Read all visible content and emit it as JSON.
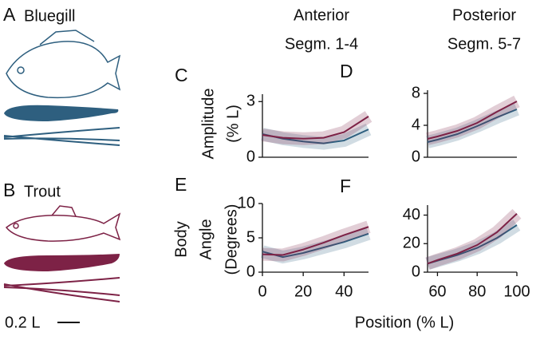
{
  "fish": [
    {
      "letter": "A",
      "name": "Bluegill",
      "color": "#2e5f7f"
    },
    {
      "letter": "B",
      "name": "Trout",
      "color": "#7d2246"
    }
  ],
  "scale_bar": "0.2 L",
  "columns": [
    [
      "Anterior",
      "Segm. 1-4"
    ],
    [
      "Posterior",
      "Segm. 5-7"
    ]
  ],
  "rows": [
    [
      "Amplitude",
      "(% L)"
    ],
    [
      "Body",
      "Angle",
      "(Degrees)"
    ]
  ],
  "x_label": "Position (% L)",
  "chart_data": [
    {
      "type": "line",
      "label": "C",
      "x": [
        0,
        10,
        20,
        30,
        40,
        52
      ],
      "xlim": [
        0,
        52
      ],
      "ylim": [
        0,
        3.4
      ],
      "yticks": [
        0,
        3
      ],
      "series": [
        {
          "color": "#2e5f7f",
          "values": [
            1.25,
            1.0,
            0.85,
            0.75,
            0.9,
            1.5
          ]
        },
        {
          "color": "#7d2246",
          "values": [
            1.2,
            1.05,
            1.0,
            1.05,
            1.35,
            2.2
          ]
        }
      ]
    },
    {
      "type": "line",
      "label": "D",
      "x": [
        55,
        60,
        70,
        80,
        90,
        100
      ],
      "xlim": [
        55,
        100
      ],
      "ylim": [
        0,
        8.4
      ],
      "yticks": [
        0,
        4,
        8
      ],
      "series": [
        {
          "color": "#2e5f7f",
          "values": [
            1.9,
            2.2,
            2.9,
            3.9,
            5.0,
            6.0
          ]
        },
        {
          "color": "#7d2246",
          "values": [
            2.3,
            2.6,
            3.3,
            4.3,
            5.7,
            7.0
          ]
        }
      ]
    },
    {
      "type": "line",
      "label": "E",
      "x": [
        0,
        10,
        20,
        30,
        40,
        52
      ],
      "xlim": [
        0,
        52
      ],
      "xticks": [
        0,
        20,
        40
      ],
      "ylim": [
        0,
        10
      ],
      "yticks": [
        0,
        5,
        10
      ],
      "series": [
        {
          "color": "#2e5f7f",
          "values": [
            3.0,
            2.2,
            2.8,
            3.6,
            4.4,
            5.6
          ]
        },
        {
          "color": "#7d2246",
          "values": [
            2.6,
            2.5,
            3.3,
            4.3,
            5.4,
            6.6
          ]
        }
      ]
    },
    {
      "type": "line",
      "label": "F",
      "x": [
        55,
        60,
        70,
        80,
        90,
        100
      ],
      "xlim": [
        55,
        100
      ],
      "xticks": [
        60,
        80,
        100
      ],
      "ylim": [
        0,
        47
      ],
      "yticks": [
        0,
        20,
        40
      ],
      "series": [
        {
          "color": "#2e5f7f",
          "values": [
            6,
            8,
            12,
            17,
            24,
            33
          ]
        },
        {
          "color": "#7d2246",
          "values": [
            6,
            8.5,
            13,
            19,
            28,
            41
          ]
        }
      ]
    }
  ]
}
